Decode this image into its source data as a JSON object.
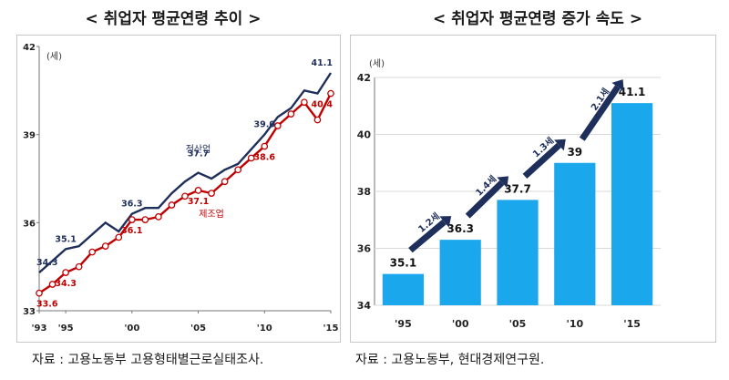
{
  "left": {
    "title": "< 취업자 평균연령 추이 >",
    "source": "자료 : 고용노동부 고용형태별근로실태조사.",
    "chart_data": {
      "type": "line",
      "unit": "(세)",
      "x": [
        1993,
        1994,
        1995,
        1996,
        1997,
        1998,
        1999,
        2000,
        2001,
        2002,
        2003,
        2004,
        2005,
        2006,
        2007,
        2008,
        2009,
        2010,
        2011,
        2012,
        2013,
        2014,
        2015
      ],
      "xticks": [
        1993,
        1995,
        2000,
        2005,
        2010,
        2015
      ],
      "xtick_labels": [
        "'93",
        "'95",
        "'00",
        "'05",
        "'10",
        "'15"
      ],
      "ylim": [
        33,
        42
      ],
      "yticks": [
        33,
        36,
        39,
        42
      ],
      "grid": false,
      "series": [
        {
          "name": "전산업",
          "color": "#1f2f5c",
          "marker": "none",
          "values": [
            34.3,
            34.7,
            35.1,
            35.2,
            35.6,
            36.0,
            35.7,
            36.3,
            36.5,
            36.5,
            37.0,
            37.4,
            37.7,
            37.5,
            37.8,
            38.0,
            38.5,
            39.0,
            39.6,
            39.9,
            40.5,
            40.4,
            41.1
          ]
        },
        {
          "name": "제조업",
          "color": "#c00000",
          "marker": "circle",
          "values": [
            33.6,
            33.9,
            34.3,
            34.5,
            35.0,
            35.2,
            35.5,
            36.1,
            36.1,
            36.2,
            36.6,
            36.9,
            37.1,
            37.0,
            37.4,
            37.8,
            38.2,
            38.6,
            39.3,
            39.7,
            40.1,
            39.5,
            40.4
          ]
        }
      ],
      "value_labels": [
        {
          "series": 0,
          "x": 1993,
          "text": "34.3"
        },
        {
          "series": 0,
          "x": 1995,
          "text": "35.1"
        },
        {
          "series": 0,
          "x": 2000,
          "text": "36.3"
        },
        {
          "series": 0,
          "x": 2005,
          "text": "37.7"
        },
        {
          "series": 0,
          "x": 2010,
          "text": "39.0"
        },
        {
          "series": 0,
          "x": 2015,
          "text": "41.1"
        },
        {
          "series": 1,
          "x": 1993,
          "text": "33.6"
        },
        {
          "series": 1,
          "x": 1995,
          "text": "34.3"
        },
        {
          "series": 1,
          "x": 2000,
          "text": "36.1"
        },
        {
          "series": 1,
          "x": 2005,
          "text": "37.1"
        },
        {
          "series": 1,
          "x": 2010,
          "text": "38.6"
        },
        {
          "series": 1,
          "x": 2015,
          "text": "40.4"
        }
      ]
    }
  },
  "right": {
    "title": "< 취업자 평균연령 증가 속도 >",
    "source": "자료 : 고용노동부, 현대경제연구원.",
    "chart_data": {
      "type": "bar",
      "unit": "(세)",
      "categories": [
        "'95",
        "'00",
        "'05",
        "'10",
        "'15"
      ],
      "values": [
        35.1,
        36.3,
        37.7,
        39.0,
        41.1
      ],
      "ylim": [
        34,
        42
      ],
      "yticks": [
        34,
        36,
        38,
        40,
        42
      ],
      "bar_color": "#1aa7ec",
      "grid": true,
      "arrow_color": "#1f2f5c",
      "increments": [
        "1.2세",
        "1.4세",
        "1.3세",
        "2.1세"
      ]
    }
  }
}
